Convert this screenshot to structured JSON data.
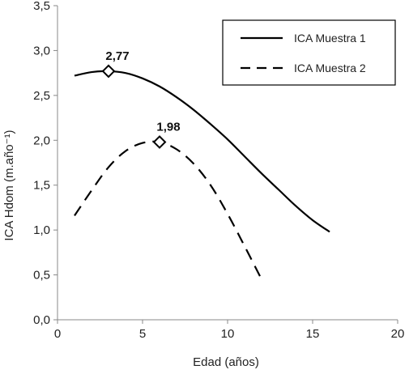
{
  "chart_data": {
    "type": "line",
    "xlabel": "Edad (años)",
    "ylabel": "ICA Hdom (m.año⁻¹)",
    "xlim": [
      0,
      20
    ],
    "ylim": [
      0,
      3.5
    ],
    "x_ticks": [
      0,
      5,
      10,
      15,
      20
    ],
    "y_ticks": [
      0,
      0.5,
      1.0,
      1.5,
      2.0,
      2.5,
      3.0,
      3.5
    ],
    "x_tick_labels": [
      "0",
      "5",
      "10",
      "15",
      "20"
    ],
    "y_tick_labels": [
      "0,0",
      "0,5",
      "1,0",
      "1,5",
      "2,0",
      "2,5",
      "3,0",
      "3,5"
    ],
    "grid": false,
    "legend_position": "top-right",
    "series": [
      {
        "name": "ICA Muestra 1",
        "line_style": "solid",
        "color": "#000000",
        "x": [
          1,
          2,
          3,
          4,
          5,
          6,
          7,
          8,
          9,
          10,
          11,
          12,
          13,
          14,
          15,
          16
        ],
        "y": [
          2.72,
          2.76,
          2.77,
          2.75,
          2.69,
          2.6,
          2.48,
          2.34,
          2.18,
          2.01,
          1.82,
          1.63,
          1.45,
          1.27,
          1.11,
          0.98
        ]
      },
      {
        "name": "ICA Muestra 2",
        "line_style": "dashed",
        "color": "#000000",
        "x": [
          1,
          2,
          3,
          4,
          5,
          6,
          7,
          8,
          9,
          10,
          11,
          12
        ],
        "y": [
          1.16,
          1.44,
          1.7,
          1.88,
          1.97,
          1.98,
          1.9,
          1.74,
          1.5,
          1.18,
          0.82,
          0.45
        ]
      }
    ],
    "markers": [
      {
        "series": "ICA Muestra 1",
        "x": 3,
        "y": 2.77,
        "label": "2,77"
      },
      {
        "series": "ICA Muestra 2",
        "x": 6,
        "y": 1.98,
        "label": "1,98"
      }
    ]
  }
}
